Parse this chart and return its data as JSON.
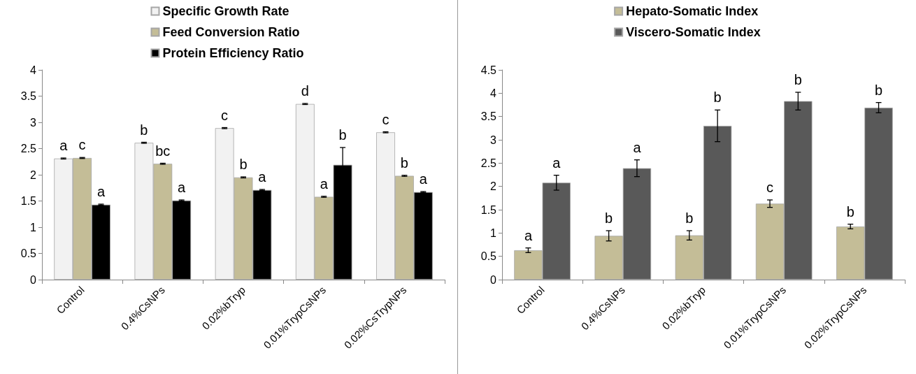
{
  "chart_data": [
    {
      "type": "bar",
      "categories": [
        "Control",
        "0.4%CsNPs",
        "0.02%bTryp",
        "0.01%TrypCsNPs",
        "0.02%CsTrypNPs"
      ],
      "series": [
        {
          "name": "Specific Growth Rate",
          "color": "#f2f2f2",
          "values": [
            2.31,
            2.61,
            2.89,
            3.35,
            2.81
          ],
          "errors": [
            0.01,
            0.01,
            0.01,
            0.01,
            0.01
          ],
          "value_labels": [
            "a",
            "b",
            "c",
            "d",
            "c"
          ]
        },
        {
          "name": "Feed Conversion Ratio",
          "color": "#c4bd97",
          "values": [
            2.32,
            2.21,
            1.95,
            1.58,
            1.98
          ],
          "errors": [
            0.01,
            0.01,
            0.01,
            0.01,
            0.01
          ],
          "value_labels": [
            "c",
            "bc",
            "b",
            "a",
            "b"
          ]
        },
        {
          "name": "Protein Efficiency Ratio",
          "color": "#000000",
          "values": [
            1.43,
            1.51,
            1.71,
            2.19,
            1.67
          ],
          "errors": [
            0.01,
            0.01,
            0.01,
            0.33,
            0.01
          ],
          "value_labels": [
            "a",
            "a",
            "a",
            "b",
            "a"
          ]
        }
      ],
      "ylim": [
        0,
        4
      ],
      "yticks": [
        0,
        0.5,
        1,
        1.5,
        2,
        2.5,
        3,
        3.5,
        4
      ],
      "grid": false,
      "legend": "top"
    },
    {
      "type": "bar",
      "categories": [
        "Control",
        "0.4%CsNPs",
        "0.02%bTryp",
        "0.01%TrypCsNPs",
        "0.02%TrypCsNPs"
      ],
      "series": [
        {
          "name": "Hepato-Somatic Index",
          "color": "#c4bd97",
          "values": [
            0.63,
            0.94,
            0.95,
            1.63,
            1.14
          ],
          "errors": [
            0.05,
            0.11,
            0.1,
            0.08,
            0.05
          ],
          "value_labels": [
            "a",
            "b",
            "b",
            "c",
            "b"
          ]
        },
        {
          "name": "Viscero-Somatic Index",
          "color": "#595959",
          "values": [
            2.08,
            2.39,
            3.3,
            3.83,
            3.69
          ],
          "errors": [
            0.16,
            0.18,
            0.34,
            0.19,
            0.11
          ],
          "value_labels": [
            "a",
            "a",
            "b",
            "b",
            "b"
          ]
        }
      ],
      "ylim": [
        0,
        4.5
      ],
      "yticks": [
        0,
        0.5,
        1,
        1.5,
        2,
        2.5,
        3,
        3.5,
        4,
        4.5
      ],
      "grid": false,
      "legend": "top"
    }
  ]
}
